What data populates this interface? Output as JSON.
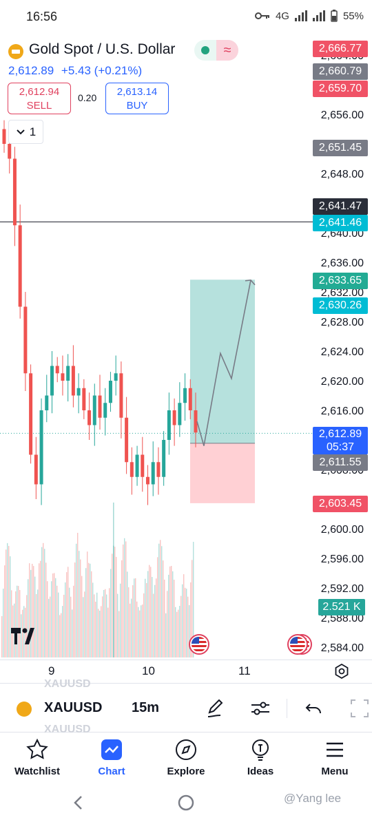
{
  "status_bar": {
    "time": "16:56",
    "network": "4G",
    "battery": "55%"
  },
  "header": {
    "title": "Gold Spot / U.S. Dollar",
    "last_price": "2,612.89",
    "change": "+5.43 (+0.21%)"
  },
  "trade": {
    "sell_price": "2,612.94",
    "sell_label": "SELL",
    "spread": "0.20",
    "buy_price": "2,613.14",
    "buy_label": "BUY"
  },
  "interval_toggle": {
    "value": "1"
  },
  "price_axis": {
    "ticks": [
      "2,664.00",
      "2,656.00",
      "2,648.00",
      "2,640.00",
      "2,636.00",
      "2,632.00",
      "2,628.00",
      "2,624.00",
      "2,620.00",
      "2,616.00",
      "2,608.00",
      "2,604.00",
      "2,600.00",
      "2,596.00",
      "2,592.00",
      "2,588.00",
      "2,584.00"
    ]
  },
  "price_tags": [
    {
      "label": "2,666.77",
      "color": "#f05266"
    },
    {
      "label": "2,660.79",
      "color": "#787b86"
    },
    {
      "label": "2,659.70",
      "color": "#f05266"
    },
    {
      "label": "2,651.45",
      "color": "#787b86"
    },
    {
      "label": "2,641.47",
      "color": "#2a2e39"
    },
    {
      "label": "2,641.46",
      "color": "#00bcd4"
    },
    {
      "label": "2,633.65",
      "color": "#22ab94"
    },
    {
      "label": "2,630.26",
      "color": "#00bcd4"
    },
    {
      "label": "2,612.89",
      "sublabel": "05:37",
      "color": "#2962ff"
    },
    {
      "label": "2,611.55",
      "color": "#787b86"
    },
    {
      "label": "2,603.45",
      "color": "#f05266"
    }
  ],
  "volume_tag": "2.521 K",
  "x_axis": {
    "ticks": [
      "9",
      "10",
      "11"
    ]
  },
  "toolbar": {
    "symbol": "XAUUSD",
    "interval": "15m",
    "ghost_symbol": "XAUUSD"
  },
  "bottom_nav": {
    "items": [
      {
        "label": "Watchlist",
        "icon": "star-icon"
      },
      {
        "label": "Chart",
        "icon": "chart-icon"
      },
      {
        "label": "Explore",
        "icon": "compass-icon"
      },
      {
        "label": "Ideas",
        "icon": "lightbulb-icon"
      },
      {
        "label": "Menu",
        "icon": "menu-icon"
      }
    ]
  },
  "watermark": "@Yang lee",
  "colors": {
    "accent": "#2962ff",
    "up": "#26a69a",
    "down": "#ef5350",
    "target_zone": "#b2dfdb",
    "stop_zone": "#ffcdd2"
  },
  "chart_data": {
    "type": "candlestick",
    "symbol": "XAUUSD",
    "interval": "15m",
    "ylim": [
      2584,
      2666
    ],
    "x_ticks": [
      "9",
      "10",
      "11"
    ],
    "last_price": 2612.89,
    "horizontal_line": 2641.47,
    "position": {
      "type": "long",
      "entry": 2611.55,
      "target": 2633.65,
      "stop": 2603.45
    },
    "series": [
      {
        "values": [
          2652,
          2650,
          2641,
          2630,
          2621,
          2610,
          2606,
          2616,
          2618,
          2622,
          2621,
          2620,
          2622,
          2618,
          2619,
          2616,
          2614,
          2618,
          2615,
          2617,
          2620,
          2621,
          2615,
          2609,
          2607,
          2610,
          2607,
          2606,
          2609,
          2607,
          2612,
          2616,
          2614,
          2617,
          2619,
          2616,
          2613
        ]
      }
    ]
  }
}
